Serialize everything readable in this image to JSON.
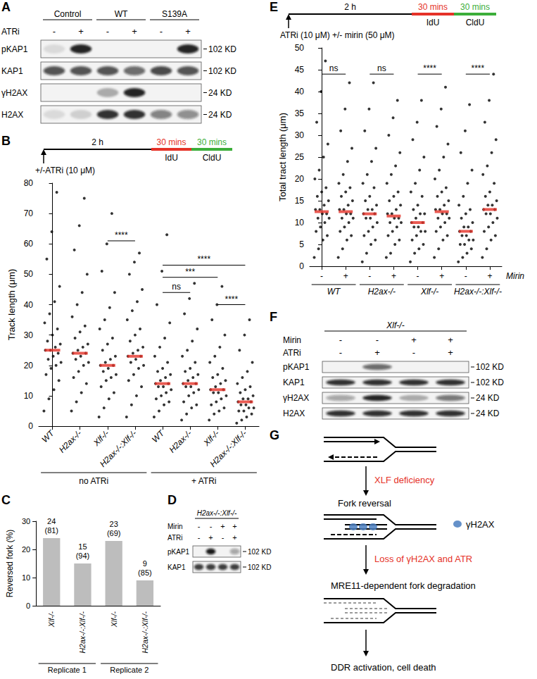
{
  "chart_data": [
    {
      "panel_label": "B",
      "type": "dot_plot",
      "timeline": {
        "arrow_label": "+/-ATRi (10 μM)",
        "segments": [
          {
            "label": "2 h",
            "color": "#000000"
          },
          {
            "label": "30 mins",
            "sublabel": "IdU",
            "color": "#e53228"
          },
          {
            "label": "30 mins",
            "sublabel": "CldU",
            "color": "#3cae3a"
          }
        ]
      },
      "y_label": "Track length (μm)",
      "categories": [
        "WT",
        "H2ax-/-",
        "Xlf-/-",
        "H2ax-/-:Xlf-/-",
        "WT",
        "H2ax-/-",
        "Xlf-/-",
        "H2ax-/-:Xlf-/-"
      ],
      "groups": [
        {
          "label": "no ATRi",
          "categories": [
            0,
            1,
            2,
            3
          ]
        },
        {
          "label": "+ ATRi",
          "categories": [
            4,
            5,
            6,
            7
          ]
        }
      ],
      "values": [
        [
          5,
          9,
          12,
          15,
          17,
          19,
          20,
          21,
          22,
          23,
          24,
          25,
          25,
          26,
          27,
          28,
          30,
          32,
          34,
          37,
          41,
          46,
          55,
          64,
          77
        ],
        [
          5,
          8,
          11,
          14,
          16,
          18,
          20,
          21,
          22,
          23,
          24,
          24,
          25,
          26,
          27,
          29,
          31,
          33,
          36,
          40,
          44,
          50,
          58,
          66,
          75
        ],
        [
          3,
          6,
          9,
          11,
          13,
          15,
          16,
          17,
          18,
          19,
          20,
          20,
          21,
          22,
          23,
          25,
          27,
          29,
          32,
          35,
          39,
          44,
          51,
          60,
          70
        ],
        [
          3,
          7,
          10,
          13,
          15,
          17,
          19,
          20,
          21,
          22,
          23,
          23,
          24,
          25,
          26,
          28,
          30,
          32,
          35,
          38,
          41,
          45,
          50,
          54,
          57
        ],
        [
          3,
          5,
          7,
          8,
          9,
          10,
          11,
          12,
          13,
          13,
          14,
          14,
          15,
          16,
          17,
          18,
          19,
          21,
          23,
          26,
          29,
          34,
          40,
          51,
          63
        ],
        [
          2,
          4,
          6,
          7,
          8,
          10,
          11,
          12,
          13,
          13,
          14,
          14,
          15,
          16,
          17,
          18,
          19,
          21,
          23,
          25,
          28,
          32,
          37,
          42,
          47
        ],
        [
          2,
          4,
          5,
          6,
          7,
          8,
          9,
          10,
          11,
          11,
          12,
          12,
          13,
          14,
          15,
          16,
          17,
          19,
          21,
          23,
          26,
          30,
          35,
          40,
          46
        ],
        [
          1,
          2,
          3,
          4,
          5,
          5,
          6,
          6,
          7,
          7,
          8,
          8,
          9,
          9,
          10,
          11,
          12,
          13,
          14,
          16,
          18,
          21,
          25,
          30,
          35
        ]
      ],
      "medians": [
        25,
        24,
        20,
        23,
        14,
        14,
        12,
        8
      ],
      "color": "#000000",
      "median_color": "#e53228",
      "ylim": [
        0,
        80
      ],
      "yticks": [
        0,
        10,
        20,
        30,
        40,
        50,
        60,
        70,
        80
      ],
      "comparisons": [
        {
          "from": 2,
          "to": 3,
          "y": 61,
          "label": "****"
        },
        {
          "from": 4,
          "to": 7,
          "y": 53,
          "label": "****"
        },
        {
          "from": 4,
          "to": 6,
          "y": 49,
          "label": "***"
        },
        {
          "from": 4,
          "to": 5,
          "y": 44,
          "label": "ns"
        },
        {
          "from": 6,
          "to": 7,
          "y": 40,
          "label": "****"
        }
      ]
    },
    {
      "panel_label": "C",
      "type": "bar",
      "y_label": "Reversed fork (%)",
      "categories": [
        "Xlf-/-",
        "H2ax-/-:Xlf-/-",
        "Xlf-/-",
        "H2ax-/-:Xlf-/-"
      ],
      "values": [
        24,
        15,
        23,
        9
      ],
      "fork_count_labels": [
        "(81)",
        "(94)",
        "(69)",
        "(85)"
      ],
      "groups": [
        {
          "label": "Replicate 1",
          "categories": [
            0,
            1
          ]
        },
        {
          "label": "Replicate 2",
          "categories": [
            2,
            3
          ]
        }
      ],
      "color": "#bdbdbd",
      "data_labels": true,
      "ylim": [
        0,
        30
      ],
      "yticks": [
        0,
        10,
        20,
        30
      ]
    },
    {
      "panel_label": "E",
      "type": "dot_plot",
      "timeline": {
        "arrow_label": "ATRi (10 μM) +/- mirin (50 μM)",
        "segments": [
          {
            "label": "2 h",
            "color": "#000000"
          },
          {
            "label": "30 mins",
            "sublabel": "IdU",
            "color": "#e53228"
          },
          {
            "label": "30 mins",
            "sublabel": "CldU",
            "color": "#3cae3a"
          }
        ]
      },
      "y_label": "Total tract length (μm)",
      "x_label": "Mirin",
      "categories": [
        "-",
        "+",
        "-",
        "+",
        "-",
        "+",
        "-",
        "+"
      ],
      "groups": [
        {
          "label": "WT",
          "categories": [
            0,
            1
          ]
        },
        {
          "label": "H2ax-/-",
          "categories": [
            2,
            3
          ]
        },
        {
          "label": "Xlf-/-",
          "categories": [
            4,
            5
          ]
        },
        {
          "label": "H2ax-/-:Xlf-/-",
          "categories": [
            6,
            7
          ]
        }
      ],
      "values": [
        [
          2,
          4,
          6,
          7,
          8,
          9,
          10,
          11,
          11,
          12,
          12,
          13,
          13,
          14,
          15,
          16,
          17,
          18,
          20,
          22,
          25,
          28,
          33,
          40,
          47
        ],
        [
          2,
          4,
          6,
          7,
          8,
          9,
          10,
          11,
          11,
          12,
          12,
          13,
          13,
          14,
          15,
          16,
          17,
          18,
          19,
          21,
          24,
          27,
          31,
          36,
          42
        ],
        [
          1,
          3,
          5,
          6,
          7,
          8,
          9,
          10,
          11,
          11,
          12,
          12,
          13,
          13,
          14,
          15,
          16,
          18,
          19,
          21,
          24,
          27,
          31,
          36,
          42
        ],
        [
          2,
          3,
          5,
          6,
          7,
          8,
          9,
          10,
          10,
          11,
          11,
          12,
          12,
          13,
          14,
          15,
          16,
          17,
          19,
          21,
          23,
          26,
          30,
          34,
          38
        ],
        [
          1,
          3,
          4,
          5,
          6,
          7,
          8,
          8,
          9,
          9,
          10,
          10,
          11,
          12,
          12,
          13,
          14,
          16,
          17,
          19,
          22,
          25,
          29,
          33,
          38
        ],
        [
          2,
          4,
          6,
          7,
          8,
          9,
          10,
          11,
          11,
          12,
          12,
          13,
          13,
          14,
          15,
          16,
          17,
          18,
          20,
          22,
          25,
          28,
          32,
          36,
          41
        ],
        [
          1,
          2,
          3,
          4,
          5,
          5,
          6,
          6,
          7,
          7,
          8,
          8,
          9,
          9,
          10,
          11,
          12,
          13,
          14,
          16,
          19,
          22,
          26,
          31,
          37
        ],
        [
          2,
          4,
          6,
          7,
          8,
          9,
          10,
          11,
          12,
          12,
          13,
          13,
          14,
          14,
          15,
          16,
          17,
          19,
          21,
          23,
          26,
          29,
          33,
          38,
          44
        ]
      ],
      "medians": [
        12.5,
        12.5,
        12,
        11.5,
        10,
        12.5,
        8,
        13
      ],
      "color": "#000000",
      "median_color": "#e53228",
      "ylim": [
        0,
        50
      ],
      "yticks": [
        0,
        5,
        10,
        15,
        20,
        25,
        30,
        35,
        40,
        45,
        50
      ],
      "comparisons": [
        {
          "from": 0,
          "to": 1,
          "y": 44,
          "label": "ns"
        },
        {
          "from": 2,
          "to": 3,
          "y": 44,
          "label": "ns"
        },
        {
          "from": 4,
          "to": 5,
          "y": 44,
          "label": "****"
        },
        {
          "from": 6,
          "to": 7,
          "y": 44,
          "label": "****"
        }
      ]
    }
  ],
  "blots": [
    {
      "panel_label": "A",
      "header": [
        {
          "label": "Control",
          "lanes": [
            0,
            1
          ]
        },
        {
          "label": "WT",
          "lanes": [
            2,
            3
          ]
        },
        {
          "label": "S139A",
          "lanes": [
            4,
            5
          ]
        }
      ],
      "conditions": [
        {
          "label": "ATRi",
          "signs": [
            "-",
            "+",
            "-",
            "+",
            "-",
            "+"
          ]
        }
      ],
      "rows": [
        {
          "label": "pKAP1",
          "size": "102 KD",
          "bands": [
            0.1,
            0.9,
            0,
            0,
            0,
            0.9
          ]
        },
        {
          "label": "KAP1",
          "size": "102 KD",
          "bands": [
            0.7,
            0.7,
            0.7,
            0.6,
            0.75,
            0.7
          ]
        },
        {
          "label": "γH2AX",
          "size": "24 KD",
          "bands": [
            0,
            0,
            0.3,
            0.9,
            0,
            0
          ]
        },
        {
          "label": "H2AX",
          "size": "24 KD",
          "bands": [
            0.1,
            0.15,
            0.85,
            0.85,
            0.5,
            0.45
          ]
        }
      ]
    },
    {
      "panel_label": "D",
      "header": [
        {
          "label": "H2ax-/-:Xlf-/-",
          "lanes": [
            0,
            1,
            2,
            3
          ]
        }
      ],
      "conditions": [
        {
          "label": "Mirin",
          "signs": [
            "-",
            "-",
            "+",
            "+"
          ]
        },
        {
          "label": "ATRi",
          "signs": [
            "-",
            "+",
            "-",
            "+"
          ]
        }
      ],
      "rows": [
        {
          "label": "pKAP1",
          "size": "102 KD",
          "bands": [
            0,
            0.95,
            0,
            0.35
          ]
        },
        {
          "label": "KAP1",
          "size": "102 KD",
          "bands": [
            0.8,
            0.8,
            0.8,
            0.8
          ]
        }
      ]
    },
    {
      "panel_label": "F",
      "header": [
        {
          "label": "Xlf-/-",
          "lanes": [
            0,
            1,
            2,
            3
          ]
        }
      ],
      "conditions": [
        {
          "label": "Mirin",
          "signs": [
            "-",
            "-",
            "+",
            "+"
          ]
        },
        {
          "label": "ATRi",
          "signs": [
            "-",
            "+",
            "-",
            "+"
          ]
        }
      ],
      "rows": [
        {
          "label": "pKAP1",
          "size": "102 KD",
          "bands": [
            0,
            0.6,
            0,
            0
          ]
        },
        {
          "label": "KAP1",
          "size": "102 KD",
          "bands": [
            0.85,
            0.85,
            0.85,
            0.85
          ]
        },
        {
          "label": "γH2AX",
          "size": "24 KD",
          "bands": [
            0.35,
            0.9,
            0.3,
            0.55
          ]
        },
        {
          "label": "H2AX",
          "size": "24 KD",
          "bands": [
            0.85,
            0.85,
            0.85,
            0.85
          ]
        }
      ]
    }
  ],
  "schematic": {
    "panel_label": "G",
    "transitions": [
      {
        "label": "XLF deficiency",
        "color": "#e53228"
      },
      {
        "label": "Loss of γH2AX and ATR",
        "color": "#e53228"
      }
    ],
    "stages": [
      "Fork reversal",
      "MRE11-dependent fork degradation"
    ],
    "marker_key": {
      "label": "γH2AX",
      "color": "#4a7ebf"
    },
    "outcome": "DDR activation, cell death"
  }
}
